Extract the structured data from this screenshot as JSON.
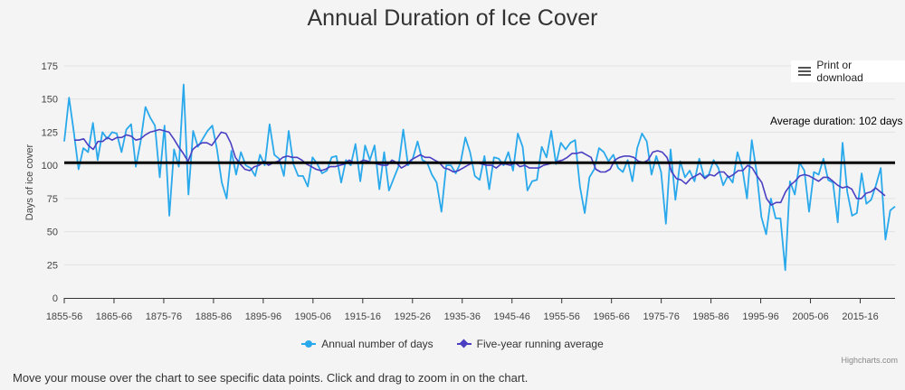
{
  "title": "Annual Duration of Ice Cover",
  "menu_label": "Print or download",
  "average_label": "Average duration: 102 days",
  "credit": "Highcharts.com",
  "footnote": "Move your mouse over the chart to see specific data points. Click and drag to zoom in on the chart.",
  "colors": {
    "annual": "#29a9eb",
    "running": "#4a3fc2",
    "average": "#000000"
  },
  "chart_data": {
    "type": "line",
    "title": "Annual Duration of Ice Cover",
    "ylabel": "Days of ice cover",
    "xlabel": "",
    "ylim": [
      0,
      175
    ],
    "yticks": [
      0,
      25,
      50,
      75,
      100,
      125,
      150,
      175
    ],
    "start_year": 1855,
    "end_year": 2022,
    "xtick_labels": [
      "1855-56",
      "1865-66",
      "1875-76",
      "1885-86",
      "1895-96",
      "1905-06",
      "1915-16",
      "1925-26",
      "1935-36",
      "1945-46",
      "1955-56",
      "1965-66",
      "1975-76",
      "1985-86",
      "1995-96",
      "2005-06",
      "2015-16"
    ],
    "average": 102,
    "legend_position": "bottom",
    "series": [
      {
        "name": "Annual number of days",
        "values": [
          118,
          151,
          125,
          97,
          113,
          110,
          132,
          104,
          125,
          120,
          125,
          124,
          110,
          127,
          131,
          99,
          118,
          144,
          136,
          130,
          91,
          130,
          62,
          112,
          99,
          161,
          78,
          126,
          114,
          120,
          126,
          130,
          112,
          87,
          75,
          111,
          93,
          110,
          100,
          98,
          92,
          108,
          100,
          131,
          108,
          105,
          92,
          126,
          101,
          92,
          92,
          84,
          106,
          101,
          94,
          96,
          106,
          107,
          87,
          104,
          100,
          116,
          88,
          115,
          104,
          115,
          82,
          110,
          81,
          90,
          99,
          127,
          100,
          105,
          118,
          104,
          102,
          93,
          87,
          65,
          100,
          100,
          94,
          102,
          121,
          110,
          92,
          89,
          107,
          82,
          106,
          105,
          100,
          110,
          96,
          124,
          114,
          81,
          88,
          89,
          114,
          106,
          126,
          101,
          117,
          112,
          117,
          119,
          84,
          64,
          91,
          97,
          113,
          110,
          103,
          108,
          98,
          95,
          104,
          88,
          113,
          124,
          118,
          93,
          107,
          95,
          56,
          112,
          74,
          103,
          91,
          96,
          88,
          105,
          91,
          93,
          104,
          98,
          85,
          92,
          87,
          110,
          98,
          75,
          119,
          95,
          61,
          48,
          75,
          60,
          60,
          21,
          88,
          78,
          102,
          96,
          65,
          95,
          93,
          105,
          89,
          87,
          57,
          117,
          80,
          62,
          64,
          94,
          71,
          74,
          85,
          98,
          44,
          66,
          69
        ]
      },
      {
        "name": "Five-year running average",
        "values": [
          119,
          119,
          120,
          115,
          112,
          118,
          118,
          121,
          119,
          121,
          121,
          123,
          122,
          119,
          120,
          123,
          125,
          126,
          127,
          126,
          125,
          120,
          114,
          109,
          103,
          112,
          115,
          117,
          117,
          115,
          120,
          125,
          124,
          117,
          106,
          101,
          97,
          96,
          99,
          100,
          103,
          100,
          102,
          103,
          106,
          107,
          106,
          106,
          104,
          101,
          99,
          97,
          96,
          97,
          99,
          99,
          100,
          101,
          104,
          102,
          102,
          104,
          103,
          102,
          101,
          100,
          100,
          104,
          102,
          98,
          100,
          104,
          106,
          108,
          106,
          106,
          104,
          102,
          98,
          97,
          95,
          96,
          98,
          100,
          102,
          102,
          101,
          100,
          100,
          98,
          101,
          101,
          100,
          102,
          99,
          100,
          98,
          98,
          98,
          100,
          101,
          102,
          103,
          104,
          106,
          109,
          109,
          110,
          108,
          106,
          97,
          95,
          95,
          97,
          104,
          106,
          107,
          107,
          106,
          103,
          102,
          104,
          110,
          111,
          110,
          106,
          95,
          90,
          89,
          86,
          90,
          92,
          94,
          90,
          93,
          92,
          95,
          95,
          91,
          93,
          96,
          96,
          100,
          98,
          92,
          87,
          75,
          70,
          72,
          72,
          80,
          85,
          88,
          92,
          93,
          92,
          90,
          88,
          91,
          91,
          88,
          85,
          83,
          84,
          82,
          75,
          75,
          79,
          80,
          83,
          80,
          77
        ]
      }
    ]
  }
}
